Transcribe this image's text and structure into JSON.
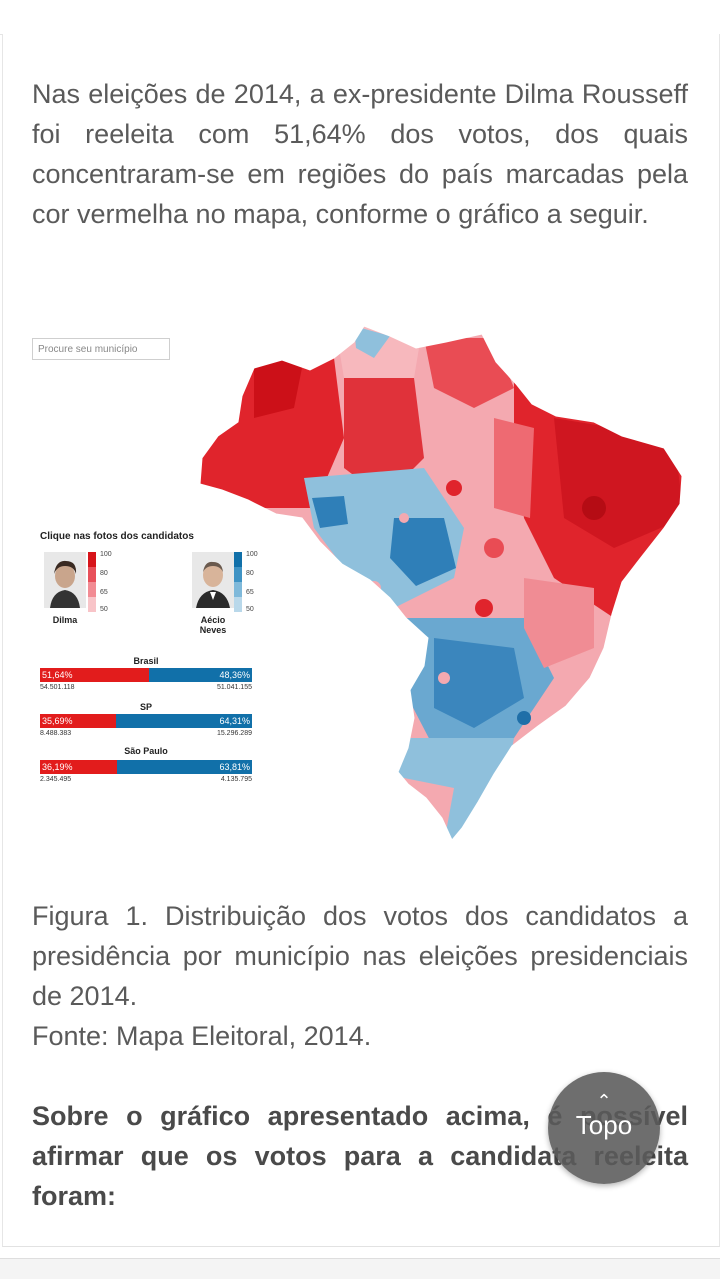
{
  "article": {
    "paragraph1": "Nas eleições de 2014, a ex-presidente Dilma Rousseff foi reeleita com 51,64% dos votos, dos quais concentraram-se em regiões do país marcadas pela cor vermelha no mapa, conforme o gráfico a seguir.",
    "caption": "Figura 1. Distribuição dos votos dos candidatos a presidência por município nas eleições presidenciais de 2014.",
    "source": "Fonte: Mapa Eleitoral, 2014.",
    "question": "Sobre o gráfico apresentado acima, é possível afirmar que os votos para a candidata reeleita foram:"
  },
  "figure": {
    "search_placeholder": "Procure seu município",
    "legend_title": "Clique nas fotos dos candidatos",
    "candidates": [
      {
        "name": "Dilma",
        "color": "#e21c1c"
      },
      {
        "name": "Aécio Neves",
        "color": "#1170a9"
      }
    ],
    "scale_ticks": [
      "100",
      "80",
      "65",
      "50"
    ],
    "results": [
      {
        "region": "Brasil",
        "left_pct": "51,64%",
        "right_pct": "48,36%",
        "left_votes": "54.501.118",
        "right_votes": "51.041.155",
        "left_share": 51.64
      },
      {
        "region": "SP",
        "left_pct": "35,69%",
        "right_pct": "64,31%",
        "left_votes": "8.488.383",
        "right_votes": "15.296.289",
        "left_share": 35.69
      },
      {
        "region": "São Paulo",
        "left_pct": "36,19%",
        "right_pct": "63,81%",
        "left_votes": "2.345.495",
        "right_votes": "4.135.795",
        "left_share": 36.19
      }
    ]
  },
  "scroll_top_button": {
    "icon": "chevron-up-icon",
    "label": "Topo"
  }
}
